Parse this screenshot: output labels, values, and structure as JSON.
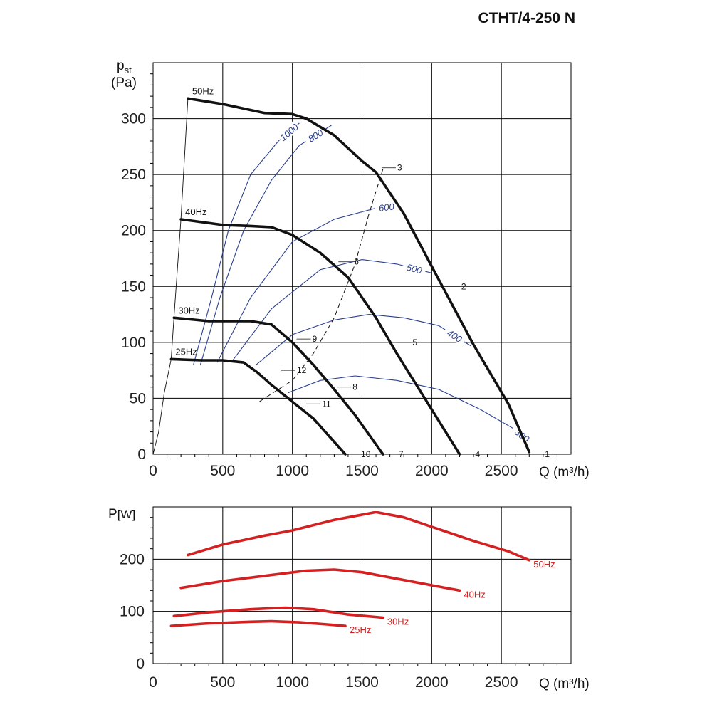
{
  "title": "CTHT/4-250 N",
  "colors": {
    "curve": "#111111",
    "grid": "#000000",
    "efficiency": "#2a3f8f",
    "power": "#d42020"
  },
  "chart_data": [
    {
      "type": "line",
      "name": "pressure",
      "ylabel": "p",
      "ylabel_sub": "st",
      "yunit": "(Pa)",
      "xlabel": "Q (m³/h)",
      "xlim": [
        0,
        3000
      ],
      "ylim": [
        0,
        350
      ],
      "xticks": [
        0,
        500,
        1000,
        1500,
        2000,
        2500
      ],
      "yticks": [
        0,
        50,
        100,
        150,
        200,
        250,
        300
      ],
      "grid": true,
      "series": [
        {
          "name": "50Hz",
          "points": [
            [
              250,
              318
            ],
            [
              500,
              313
            ],
            [
              800,
              305
            ],
            [
              1000,
              304
            ],
            [
              1100,
              300
            ],
            [
              1300,
              285
            ],
            [
              1500,
              262
            ],
            [
              1600,
              252
            ],
            [
              1800,
              215
            ],
            [
              2000,
              168
            ],
            [
              2300,
              98
            ],
            [
              2550,
              45
            ],
            [
              2700,
              2
            ]
          ]
        },
        {
          "name": "40Hz",
          "points": [
            [
              200,
              210
            ],
            [
              500,
              205
            ],
            [
              700,
              204
            ],
            [
              850,
              203
            ],
            [
              1000,
              196
            ],
            [
              1200,
              180
            ],
            [
              1400,
              158
            ],
            [
              1600,
              122
            ],
            [
              1750,
              90
            ],
            [
              2000,
              40
            ],
            [
              2200,
              0
            ]
          ]
        },
        {
          "name": "30Hz",
          "points": [
            [
              150,
              122
            ],
            [
              400,
              119
            ],
            [
              700,
              119
            ],
            [
              850,
              116
            ],
            [
              1000,
              100
            ],
            [
              1150,
              80
            ],
            [
              1300,
              58
            ],
            [
              1450,
              35
            ],
            [
              1650,
              0
            ]
          ]
        },
        {
          "name": "25Hz",
          "points": [
            [
              130,
              85
            ],
            [
              350,
              84
            ],
            [
              500,
              84
            ],
            [
              650,
              82
            ],
            [
              750,
              73
            ],
            [
              850,
              62
            ],
            [
              950,
              52
            ],
            [
              1050,
              42
            ],
            [
              1150,
              32
            ],
            [
              1250,
              18
            ],
            [
              1380,
              0
            ]
          ]
        }
      ],
      "system_curve": [
        [
          1650,
          255
        ],
        [
          1550,
          215
        ],
        [
          1450,
          170
        ],
        [
          1300,
          122
        ],
        [
          1150,
          90
        ],
        [
          1000,
          66
        ],
        [
          850,
          54
        ],
        [
          750,
          46
        ]
      ],
      "efficiency_curves": [
        {
          "label": "1000",
          "points": [
            [
              290,
              80
            ],
            [
              420,
              140
            ],
            [
              540,
              200
            ],
            [
              700,
              250
            ],
            [
              900,
              280
            ],
            [
              1050,
              296
            ]
          ]
        },
        {
          "label": "800",
          "points": [
            [
              340,
              80
            ],
            [
              480,
              140
            ],
            [
              650,
              200
            ],
            [
              850,
              245
            ],
            [
              1050,
              276
            ],
            [
              1280,
              294
            ]
          ]
        },
        {
          "label": "600",
          "points": [
            [
              460,
              82
            ],
            [
              700,
              140
            ],
            [
              1000,
              190
            ],
            [
              1300,
              210
            ],
            [
              1600,
              220
            ],
            [
              1750,
              222
            ]
          ]
        },
        {
          "label": "500",
          "points": [
            [
              560,
              82
            ],
            [
              850,
              130
            ],
            [
              1200,
              165
            ],
            [
              1500,
              174
            ],
            [
              1750,
              170
            ],
            [
              2000,
              162
            ]
          ]
        },
        {
          "label": "400",
          "points": [
            [
              740,
              80
            ],
            [
              1000,
              107
            ],
            [
              1300,
              120
            ],
            [
              1550,
              125
            ],
            [
              1800,
              122
            ],
            [
              2050,
              115
            ],
            [
              2280,
              97
            ]
          ]
        },
        {
          "label": "300",
          "points": [
            [
              970,
              55
            ],
            [
              1200,
              66
            ],
            [
              1450,
              70
            ],
            [
              1750,
              66
            ],
            [
              2050,
              58
            ],
            [
              2350,
              40
            ],
            [
              2600,
              22
            ],
            [
              2700,
              12
            ]
          ]
        }
      ],
      "point_labels": [
        {
          "label": "1",
          "x": 2700,
          "y": 0
        },
        {
          "label": "2",
          "x": 2100,
          "y": 150
        },
        {
          "label": "3",
          "x": 1640,
          "y": 256
        },
        {
          "label": "4",
          "x": 2200,
          "y": 0
        },
        {
          "label": "5",
          "x": 1750,
          "y": 100
        },
        {
          "label": "6",
          "x": 1330,
          "y": 172
        },
        {
          "label": "7",
          "x": 1650,
          "y": 0
        },
        {
          "label": "8",
          "x": 1320,
          "y": 60
        },
        {
          "label": "9",
          "x": 1030,
          "y": 103
        },
        {
          "label": "10",
          "x": 1380,
          "y": 0
        },
        {
          "label": "11",
          "x": 1100,
          "y": 45
        },
        {
          "label": "12",
          "x": 920,
          "y": 75
        }
      ]
    },
    {
      "type": "line",
      "name": "power",
      "ylabel": "P",
      "yunit": "[W]",
      "xlabel": "Q (m³/h)",
      "xlim": [
        0,
        3000
      ],
      "ylim": [
        0,
        300
      ],
      "xticks": [
        0,
        500,
        1000,
        1500,
        2000,
        2500
      ],
      "yticks": [
        0,
        100,
        200
      ],
      "grid": true,
      "series": [
        {
          "name": "50Hz",
          "points": [
            [
              250,
              208
            ],
            [
              500,
              228
            ],
            [
              800,
              245
            ],
            [
              1000,
              255
            ],
            [
              1300,
              275
            ],
            [
              1600,
              290
            ],
            [
              1800,
              280
            ],
            [
              2000,
              262
            ],
            [
              2300,
              235
            ],
            [
              2550,
              215
            ],
            [
              2700,
              198
            ]
          ]
        },
        {
          "name": "40Hz",
          "points": [
            [
              200,
              145
            ],
            [
              500,
              158
            ],
            [
              800,
              168
            ],
            [
              1100,
              178
            ],
            [
              1300,
              180
            ],
            [
              1500,
              175
            ],
            [
              1800,
              160
            ],
            [
              2000,
              150
            ],
            [
              2200,
              140
            ]
          ]
        },
        {
          "name": "30Hz",
          "points": [
            [
              150,
              91
            ],
            [
              400,
              98
            ],
            [
              700,
              104
            ],
            [
              950,
              107
            ],
            [
              1150,
              104
            ],
            [
              1400,
              94
            ],
            [
              1650,
              88
            ]
          ]
        },
        {
          "name": "25Hz",
          "points": [
            [
              130,
              72
            ],
            [
              400,
              77
            ],
            [
              700,
              80
            ],
            [
              850,
              81
            ],
            [
              1050,
              79
            ],
            [
              1250,
              75
            ],
            [
              1380,
              72
            ]
          ]
        }
      ]
    }
  ]
}
